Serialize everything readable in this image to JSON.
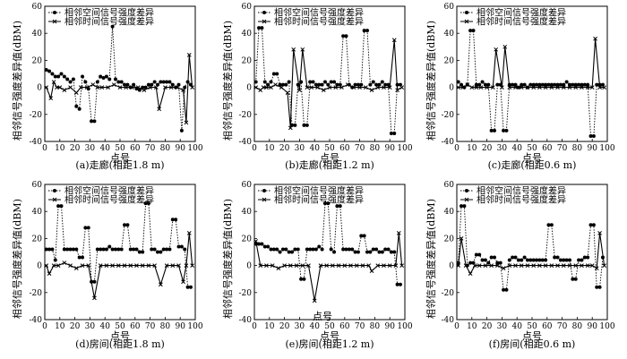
{
  "figure": {
    "shared_ylabel": "相邻信号强度差异值(dBM)",
    "shared_xlabel": "点号"
  },
  "chart_data": [
    {
      "type": "line",
      "caption": "(a)走廊(相距1.8 m)",
      "xlabel": "点号",
      "ylabel": "相邻信号强度差异值(dBM)",
      "xlim": [
        0,
        100
      ],
      "ylim": [
        -40,
        60
      ],
      "xticks": [
        0,
        10,
        20,
        30,
        40,
        50,
        60,
        70,
        80,
        90,
        100
      ],
      "yticks": [
        -40,
        -20,
        0,
        20,
        40,
        60
      ],
      "legend": "top-left",
      "series": [
        {
          "name": "相邻空间信号强度差异",
          "marker": "circle",
          "style": "dotted",
          "x": [
            1,
            3,
            5,
            7,
            9,
            11,
            13,
            15,
            17,
            19,
            21,
            23,
            25,
            27,
            29,
            31,
            33,
            35,
            37,
            39,
            41,
            43,
            45,
            47,
            49,
            51,
            53,
            55,
            57,
            59,
            61,
            63,
            65,
            67,
            69,
            71,
            73,
            75,
            77,
            79,
            81,
            83,
            85,
            87,
            89,
            91,
            93,
            95,
            97
          ],
          "y": [
            13,
            12,
            10,
            8,
            8,
            10,
            8,
            6,
            4,
            6,
            -14,
            -16,
            8,
            4,
            -1,
            -25,
            -25,
            4,
            8,
            7,
            8,
            6,
            45,
            6,
            4,
            4,
            2,
            2,
            0,
            2,
            -1,
            -2,
            0,
            0,
            2,
            2,
            4,
            2,
            4,
            4,
            4,
            4,
            2,
            0,
            2,
            -32,
            0,
            4,
            2
          ]
        },
        {
          "name": "相邻时间信号强度差异",
          "marker": "cross",
          "style": "solid",
          "x": [
            1,
            4,
            6,
            8,
            10,
            13,
            17,
            21,
            24,
            28,
            32,
            35,
            38,
            42,
            46,
            50,
            54,
            58,
            62,
            66,
            70,
            74,
            76,
            80,
            84,
            88,
            92,
            94,
            96,
            98
          ],
          "y": [
            0,
            -8,
            4,
            0,
            0,
            -2,
            0,
            -4,
            0,
            0,
            2,
            0,
            0,
            0,
            2,
            0,
            0,
            0,
            0,
            -2,
            0,
            0,
            -16,
            0,
            0,
            0,
            -2,
            -26,
            24,
            0
          ]
        }
      ]
    },
    {
      "type": "line",
      "caption": "(b)走廊(相距1.2 m)",
      "xlabel": "点号",
      "ylabel": "相邻信号强度差异值(dBM)",
      "xlim": [
        0,
        100
      ],
      "ylim": [
        -40,
        60
      ],
      "xticks": [
        0,
        10,
        20,
        30,
        40,
        50,
        60,
        70,
        80,
        90,
        100
      ],
      "yticks": [
        -40,
        -20,
        0,
        20,
        40,
        60
      ],
      "legend": "top-left",
      "series": [
        {
          "name": "相邻空间信号强度差异",
          "marker": "circle",
          "style": "dotted",
          "x": [
            1,
            3,
            5,
            7,
            9,
            11,
            13,
            15,
            17,
            19,
            21,
            23,
            25,
            27,
            29,
            31,
            33,
            35,
            37,
            39,
            41,
            43,
            45,
            47,
            49,
            51,
            53,
            55,
            57,
            59,
            61,
            63,
            65,
            67,
            69,
            71,
            73,
            75,
            77,
            79,
            81,
            83,
            85,
            87,
            89,
            91,
            93,
            95,
            97
          ],
          "y": [
            4,
            44,
            44,
            4,
            2,
            4,
            10,
            10,
            2,
            2,
            2,
            4,
            -28,
            -28,
            2,
            4,
            -28,
            -28,
            4,
            4,
            2,
            2,
            2,
            4,
            2,
            4,
            4,
            2,
            2,
            38,
            38,
            2,
            0,
            2,
            2,
            2,
            42,
            42,
            2,
            4,
            2,
            2,
            4,
            2,
            2,
            -34,
            -34,
            2,
            2
          ]
        },
        {
          "name": "相邻时间信号强度差异",
          "marker": "cross",
          "style": "solid",
          "x": [
            1,
            4,
            6,
            8,
            11,
            14,
            18,
            22,
            24,
            26,
            30,
            32,
            35,
            38,
            42,
            46,
            50,
            54,
            58,
            62,
            66,
            70,
            74,
            78,
            82,
            86,
            90,
            93,
            95,
            98
          ],
          "y": [
            0,
            -2,
            0,
            0,
            0,
            2,
            0,
            -4,
            -30,
            28,
            -2,
            28,
            0,
            0,
            0,
            -2,
            0,
            0,
            0,
            2,
            0,
            0,
            0,
            -2,
            0,
            0,
            0,
            35,
            -2,
            0
          ]
        }
      ]
    },
    {
      "type": "line",
      "caption": "(c)走廊(相距0.6 m)",
      "xlabel": "点号",
      "ylabel": "相邻信号强度差异值(dBM)",
      "xlim": [
        0,
        100
      ],
      "ylim": [
        -40,
        60
      ],
      "xticks": [
        0,
        10,
        20,
        30,
        40,
        50,
        60,
        70,
        80,
        90,
        100
      ],
      "yticks": [
        -40,
        -20,
        0,
        20,
        40,
        60
      ],
      "legend": "top-left",
      "series": [
        {
          "name": "相邻空间信号强度差异",
          "marker": "circle",
          "style": "dotted",
          "x": [
            1,
            3,
            5,
            7,
            9,
            11,
            13,
            15,
            17,
            19,
            21,
            23,
            25,
            27,
            29,
            31,
            33,
            35,
            37,
            39,
            41,
            43,
            45,
            47,
            49,
            51,
            53,
            55,
            57,
            59,
            61,
            63,
            65,
            67,
            69,
            71,
            73,
            75,
            77,
            79,
            81,
            83,
            85,
            87,
            89,
            91,
            93,
            95,
            97
          ],
          "y": [
            4,
            2,
            0,
            2,
            42,
            42,
            2,
            2,
            4,
            2,
            2,
            -32,
            -32,
            2,
            2,
            -32,
            -32,
            2,
            2,
            2,
            0,
            2,
            2,
            0,
            2,
            2,
            2,
            2,
            2,
            2,
            2,
            2,
            2,
            2,
            2,
            2,
            4,
            2,
            2,
            2,
            2,
            2,
            2,
            2,
            -36,
            -36,
            2,
            2,
            2
          ]
        },
        {
          "name": "相邻时间信号强度差异",
          "marker": "cross",
          "style": "solid",
          "x": [
            1,
            4,
            7,
            10,
            13,
            16,
            20,
            24,
            26,
            30,
            32,
            35,
            39,
            43,
            47,
            51,
            55,
            59,
            63,
            67,
            71,
            75,
            79,
            83,
            87,
            90,
            92,
            95,
            98
          ],
          "y": [
            0,
            0,
            2,
            0,
            0,
            0,
            0,
            0,
            28,
            0,
            30,
            0,
            0,
            0,
            0,
            0,
            0,
            0,
            0,
            0,
            0,
            0,
            0,
            0,
            0,
            0,
            36,
            0,
            0
          ]
        }
      ]
    },
    {
      "type": "line",
      "caption": "(d)房间(相距1.8 m)",
      "xlabel": "点号",
      "ylabel": "相邻信号强度差异值(dBM)",
      "xlim": [
        0,
        100
      ],
      "ylim": [
        -40,
        60
      ],
      "xticks": [
        0,
        10,
        20,
        30,
        40,
        50,
        60,
        70,
        80,
        90,
        100
      ],
      "yticks": [
        -40,
        -20,
        0,
        20,
        40,
        60
      ],
      "legend": "top-left",
      "series": [
        {
          "name": "相邻空间信号强度差异",
          "marker": "circle",
          "style": "dotted",
          "x": [
            1,
            3,
            5,
            7,
            9,
            11,
            13,
            15,
            17,
            19,
            21,
            23,
            25,
            27,
            29,
            31,
            33,
            35,
            37,
            39,
            41,
            43,
            45,
            47,
            49,
            51,
            53,
            55,
            57,
            59,
            61,
            63,
            65,
            67,
            69,
            71,
            73,
            75,
            77,
            79,
            81,
            83,
            85,
            87,
            89,
            91,
            93,
            95,
            97
          ],
          "y": [
            12,
            12,
            12,
            4,
            44,
            44,
            12,
            12,
            12,
            12,
            12,
            6,
            6,
            28,
            28,
            -12,
            -12,
            12,
            12,
            12,
            12,
            14,
            12,
            12,
            12,
            12,
            30,
            30,
            12,
            12,
            12,
            10,
            10,
            46,
            46,
            12,
            12,
            10,
            10,
            12,
            12,
            12,
            34,
            34,
            14,
            14,
            12,
            -16,
            -16
          ]
        },
        {
          "name": "相邻时间信号强度差异",
          "marker": "cross",
          "style": "solid",
          "x": [
            1,
            3,
            6,
            9,
            13,
            17,
            21,
            25,
            29,
            33,
            37,
            41,
            45,
            49,
            53,
            57,
            61,
            65,
            69,
            73,
            77,
            81,
            85,
            89,
            92,
            94,
            96,
            98
          ],
          "y": [
            0,
            -6,
            0,
            0,
            2,
            0,
            -2,
            0,
            0,
            -24,
            0,
            0,
            0,
            0,
            0,
            0,
            0,
            0,
            0,
            0,
            -14,
            0,
            0,
            0,
            -12,
            0,
            24,
            0
          ]
        }
      ]
    },
    {
      "type": "line",
      "caption": "(e)房间(相距1.2 m)",
      "xlabel": "点号",
      "ylabel": "相邻信号强度差异值(dBM)",
      "xlim": [
        0,
        100
      ],
      "ylim": [
        -40,
        60
      ],
      "xticks": [
        0,
        10,
        20,
        30,
        40,
        50,
        60,
        70,
        80,
        90,
        100
      ],
      "yticks": [
        -40,
        -20,
        0,
        20,
        40,
        60
      ],
      "legend": "top-left",
      "series": [
        {
          "name": "相邻空间信号强度差异",
          "marker": "circle",
          "style": "dotted",
          "x": [
            1,
            3,
            5,
            7,
            9,
            11,
            13,
            15,
            17,
            19,
            21,
            23,
            25,
            27,
            29,
            31,
            33,
            35,
            37,
            39,
            41,
            43,
            45,
            47,
            49,
            51,
            53,
            55,
            57,
            59,
            61,
            63,
            65,
            67,
            69,
            71,
            73,
            75,
            77,
            79,
            81,
            83,
            85,
            87,
            89,
            91,
            93,
            95,
            97
          ],
          "y": [
            16,
            16,
            16,
            14,
            14,
            12,
            12,
            12,
            10,
            12,
            12,
            10,
            10,
            12,
            12,
            -10,
            -10,
            12,
            12,
            12,
            12,
            14,
            12,
            46,
            46,
            12,
            10,
            44,
            44,
            12,
            12,
            12,
            12,
            10,
            10,
            22,
            22,
            10,
            10,
            12,
            12,
            10,
            10,
            12,
            12,
            10,
            10,
            -14,
            -14
          ]
        },
        {
          "name": "相邻时间信号强度差异",
          "marker": "cross",
          "style": "solid",
          "x": [
            1,
            4,
            8,
            12,
            16,
            20,
            24,
            28,
            32,
            36,
            40,
            44,
            48,
            52,
            56,
            60,
            64,
            68,
            72,
            76,
            78,
            82,
            86,
            90,
            94,
            96,
            98
          ],
          "y": [
            18,
            0,
            0,
            0,
            -2,
            0,
            0,
            0,
            0,
            0,
            -26,
            0,
            0,
            0,
            0,
            0,
            0,
            0,
            0,
            0,
            -4,
            0,
            0,
            0,
            0,
            24,
            0
          ]
        }
      ]
    },
    {
      "type": "line",
      "caption": "(f)房间(相距0.6 m)",
      "xlabel": "点号",
      "ylabel": "相邻信号强度差异值(dBM)",
      "xlim": [
        0,
        100
      ],
      "ylim": [
        -40,
        60
      ],
      "xticks": [
        0,
        10,
        20,
        30,
        40,
        50,
        60,
        70,
        80,
        90,
        100
      ],
      "yticks": [
        -40,
        -20,
        0,
        20,
        40,
        60
      ],
      "legend": "top-left",
      "series": [
        {
          "name": "相邻空间信号强度差异",
          "marker": "circle",
          "style": "dotted",
          "x": [
            1,
            3,
            5,
            7,
            9,
            11,
            13,
            15,
            17,
            19,
            21,
            23,
            25,
            27,
            29,
            31,
            33,
            35,
            37,
            39,
            41,
            43,
            45,
            47,
            49,
            51,
            53,
            55,
            57,
            59,
            61,
            63,
            65,
            67,
            69,
            71,
            73,
            75,
            77,
            79,
            81,
            83,
            85,
            87,
            89,
            91,
            93,
            95,
            97
          ],
          "y": [
            2,
            44,
            44,
            0,
            2,
            2,
            8,
            8,
            4,
            4,
            2,
            6,
            6,
            2,
            2,
            -18,
            -18,
            4,
            6,
            6,
            4,
            4,
            6,
            4,
            4,
            4,
            4,
            4,
            4,
            4,
            30,
            30,
            6,
            6,
            4,
            4,
            4,
            4,
            -10,
            -10,
            4,
            4,
            6,
            6,
            30,
            30,
            -16,
            -16,
            6
          ]
        },
        {
          "name": "相邻时间信号强度差异",
          "marker": "cross",
          "style": "solid",
          "x": [
            1,
            3,
            6,
            9,
            12,
            15,
            19,
            23,
            27,
            31,
            35,
            39,
            43,
            47,
            51,
            55,
            59,
            63,
            67,
            71,
            75,
            79,
            83,
            87,
            90,
            93,
            95,
            98
          ],
          "y": [
            0,
            20,
            0,
            -6,
            0,
            0,
            0,
            0,
            0,
            -2,
            0,
            0,
            0,
            0,
            0,
            0,
            0,
            0,
            0,
            0,
            0,
            0,
            0,
            0,
            0,
            -2,
            24,
            0
          ]
        }
      ]
    }
  ]
}
